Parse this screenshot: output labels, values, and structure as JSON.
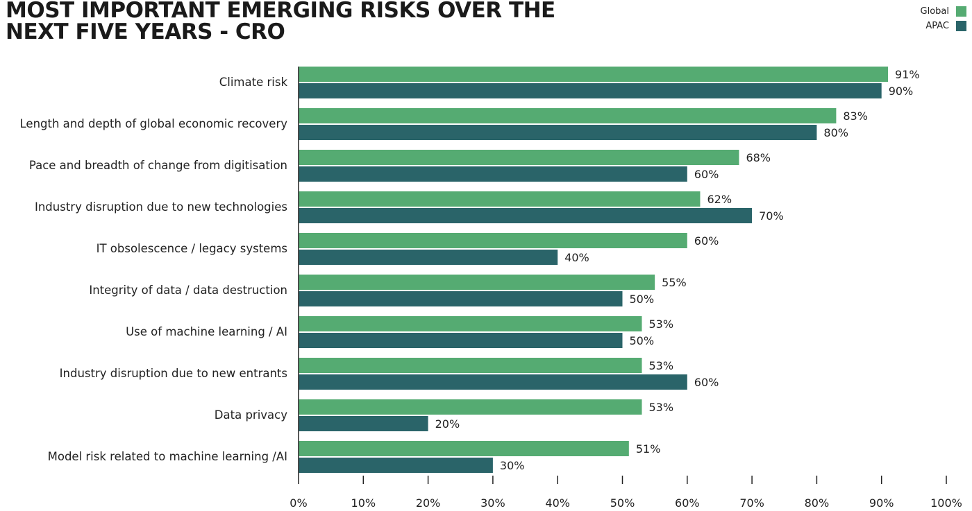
{
  "chart_data": {
    "type": "bar",
    "orientation": "horizontal",
    "title": "MOST IMPORTANT EMERGING RISKS OVER THE NEXT FIVE YEARS - CRO",
    "categories": [
      "Climate risk",
      "Length and depth of global economic recovery",
      "Pace and breadth of change from digitisation",
      "Industry disruption due to new technologies",
      "IT obsolescence / legacy systems",
      "Integrity of data / data destruction",
      "Use of machine learning / AI",
      "Industry disruption due to new entrants",
      "Data privacy",
      "Model risk related to machine learning /AI"
    ],
    "series": [
      {
        "name": "Global",
        "color": "#55ab72",
        "values": [
          91,
          83,
          68,
          62,
          60,
          55,
          53,
          53,
          53,
          51
        ]
      },
      {
        "name": "APAC",
        "color": "#2a6469",
        "values": [
          90,
          80,
          60,
          70,
          40,
          50,
          50,
          60,
          20,
          30
        ]
      }
    ],
    "value_suffix": "%",
    "xlim": [
      0,
      100
    ],
    "xticks": [
      "0%",
      "10%",
      "20%",
      "30%",
      "40%",
      "50%",
      "60%",
      "70%",
      "80%",
      "90%",
      "100%"
    ],
    "legend_position": "top-right",
    "grid": false
  }
}
